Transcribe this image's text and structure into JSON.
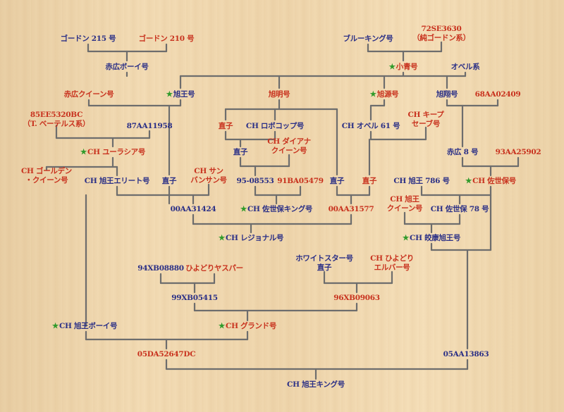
{
  "colors": {
    "male": "#2a2f86",
    "female": "#c8321e",
    "star": "#2f9a2a",
    "line": "#6d6d6d"
  },
  "star_symbol": "★",
  "nodes": {
    "gordon215": {
      "text": "ゴードン 215 号",
      "color": "male"
    },
    "gordon210": {
      "text": "ゴードン 210 号",
      "color": "female"
    },
    "akahiroBoy": {
      "text": "赤広ボーイ号",
      "color": "male"
    },
    "bluekingu": {
      "text": "ブルーキング号",
      "color": "male"
    },
    "se3630": {
      "line1": "72SE3630",
      "line2": "（純ゴードン系）",
      "color": "female"
    },
    "hoshiKei": {
      "text": "小青号",
      "color": "female",
      "star": true
    },
    "oberuKei": {
      "text": "オベル系",
      "color": "male"
    },
    "akahiroQueen": {
      "text": "赤広クイーン号",
      "color": "female"
    },
    "asahiou": {
      "text": "旭王号",
      "color": "male",
      "star": true
    },
    "asahimeigo": {
      "text": "旭明号",
      "color": "female"
    },
    "asahiGen": {
      "text": "旭源号",
      "color": "female",
      "star": true
    },
    "asahiShou": {
      "text": "旭翔号",
      "color": "male"
    },
    "aa02409": {
      "text": "68AA02409",
      "color": "female"
    },
    "ee5320": {
      "line1": "85EE5320BC",
      "line2": "（T. ベーテルス系）",
      "color": "female"
    },
    "aa11958": {
      "text": "87AA11958",
      "color": "male"
    },
    "naoko1": {
      "text": "直子",
      "color": "female"
    },
    "chRobokop": {
      "text": "CH ロボコップ号",
      "color": "male"
    },
    "chOberu61": {
      "text": "CH オベル 61 号",
      "color": "male"
    },
    "chKeepsave": {
      "line1": "CH キープ",
      "line2": "セーブ号",
      "color": "female"
    },
    "chEurasia": {
      "text": "CH ユーラシア号",
      "color": "female",
      "star": true
    },
    "naoko2": {
      "text": "直子",
      "color": "male"
    },
    "chDiana": {
      "line1": "CH ダイアナ",
      "line2": "クイーン号",
      "color": "female"
    },
    "akahiro8": {
      "text": "赤広 8 号",
      "color": "male"
    },
    "aa25902": {
      "text": "93AA25902",
      "color": "female"
    },
    "chGolden": {
      "line1": "CH ゴールデン",
      "line2": "・クイーン号",
      "color": "female"
    },
    "chElite": {
      "text": "CH 旭王エリート号",
      "color": "male"
    },
    "naoko3": {
      "text": "直子",
      "color": "male"
    },
    "chSunBansan": {
      "line1": "CH サン",
      "line2": "バンサン号",
      "color": "female"
    },
    "b08553": {
      "text": "95-08553",
      "color": "male"
    },
    "ba05479": {
      "text": "91BA05479",
      "color": "female"
    },
    "naoko4": {
      "text": "直子",
      "color": "male"
    },
    "naoko5": {
      "text": "直子",
      "color": "female"
    },
    "chAsahi786": {
      "text": "CH 旭王 786 号",
      "color": "male"
    },
    "chSasebo": {
      "text": "CH 佐世保号",
      "color": "female",
      "star": true
    },
    "aa31424": {
      "text": "00AA31424",
      "color": "male"
    },
    "chSaseboKing": {
      "text": "CH 佐世保キング号",
      "color": "male",
      "star": true
    },
    "aa31577": {
      "text": "00AA31577",
      "color": "female"
    },
    "chAsahiQueen": {
      "line1": "CH 旭王",
      "line2": "クイーン号",
      "color": "female"
    },
    "chSasebo78": {
      "text": "CH 佐世保 78 号",
      "color": "male"
    },
    "chRegional": {
      "text": "CH レジョナル号",
      "color": "male",
      "star": true
    },
    "chKoubeAsahi": {
      "text": "CH 皎康旭王号",
      "color": "male",
      "star": true
    },
    "xb08880": {
      "text": "94XB08880",
      "color": "male"
    },
    "hiyoriYasper": {
      "text": "ひよどりヤスパー",
      "color": "female"
    },
    "whiteStar": {
      "line1": "ホワイトスター号",
      "line2": "直子",
      "color": "male"
    },
    "chHiyoriElba": {
      "line1": "CH ひよどり",
      "line2": "エルバー号",
      "color": "female"
    },
    "xb05415": {
      "text": "99XB05415",
      "color": "male"
    },
    "xb09063": {
      "text": "96XB09063",
      "color": "female"
    },
    "chAsahiBoy": {
      "text": "CH 旭王ボーイ号",
      "color": "male",
      "star": true
    },
    "chGrand": {
      "text": "CH グランド号",
      "color": "female",
      "star": true
    },
    "da52647": {
      "text": "05DA52647DC",
      "color": "female"
    },
    "aa13863": {
      "text": "05AA13863",
      "color": "male"
    },
    "chAsahiKing": {
      "text": "CH 旭王キング号",
      "color": "male"
    }
  }
}
